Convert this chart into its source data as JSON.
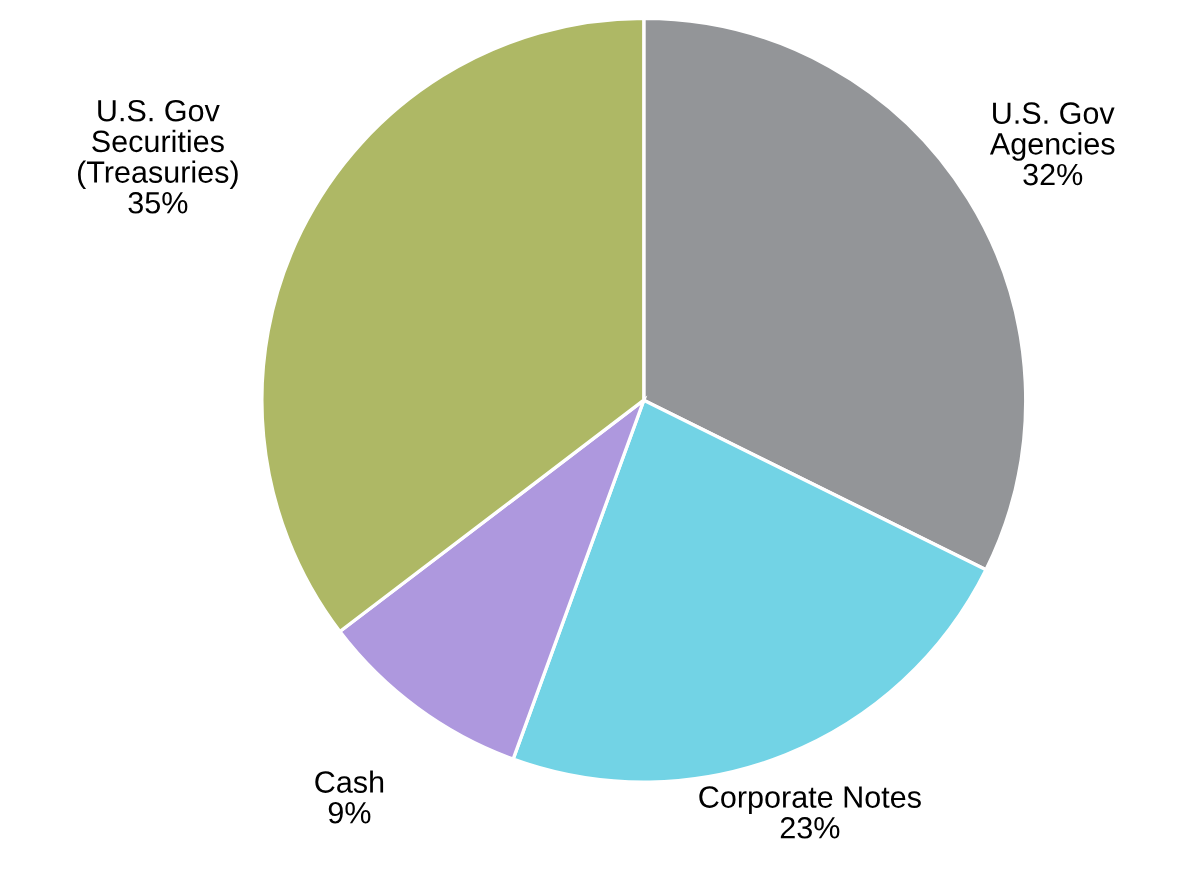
{
  "chart_data": {
    "type": "pie",
    "categories": [
      "U.S. Gov\nAgencies",
      "Corporate Notes",
      "Cash",
      "U.S. Gov\nSecurities\n(Treasuries)"
    ],
    "values": [
      32,
      23,
      9,
      35
    ],
    "value_labels": [
      "32%",
      "23%",
      "9%",
      "35%"
    ],
    "colors": [
      "#939598",
      "#72d3e5",
      "#ae98de",
      "#aeb865"
    ]
  }
}
